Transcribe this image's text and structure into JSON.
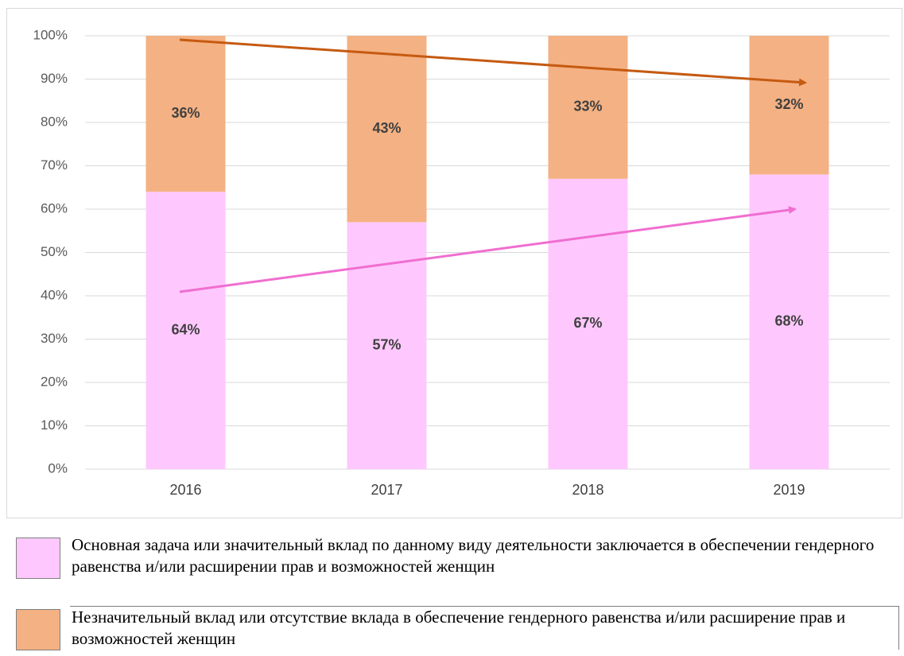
{
  "chart_data": {
    "type": "stacked-bar",
    "categories": [
      "2016",
      "2017",
      "2018",
      "2019"
    ],
    "series": [
      {
        "name": "Основная задача или значительный вклад по данному виду деятельности заключается в обеспечении гендерного равенства и/или расширении прав и возможностей женщин",
        "color": "#fec8fe",
        "values": [
          64,
          57,
          67,
          68
        ],
        "value_labels": [
          "64%",
          "57%",
          "67%",
          "68%"
        ]
      },
      {
        "name": "Незначительный вклад или отсутствие вклада в обеспечение гендерного равенства и/или расширение прав и возможностей женщин",
        "color": "#f4b183",
        "values": [
          36,
          43,
          33,
          32
        ],
        "value_labels": [
          "36%",
          "43%",
          "33%",
          "32%"
        ]
      }
    ],
    "ylim": [
      0,
      100
    ],
    "yticks": [
      {
        "value": 0,
        "label": "0%"
      },
      {
        "value": 10,
        "label": "10%"
      },
      {
        "value": 20,
        "label": "20%"
      },
      {
        "value": 30,
        "label": "30%"
      },
      {
        "value": 40,
        "label": "40%"
      },
      {
        "value": 50,
        "label": "50%"
      },
      {
        "value": 60,
        "label": "60%"
      },
      {
        "value": 70,
        "label": "70%"
      },
      {
        "value": 80,
        "label": "80%"
      },
      {
        "value": 90,
        "label": "90%"
      },
      {
        "value": 100,
        "label": "100%"
      }
    ],
    "grid": true
  }
}
